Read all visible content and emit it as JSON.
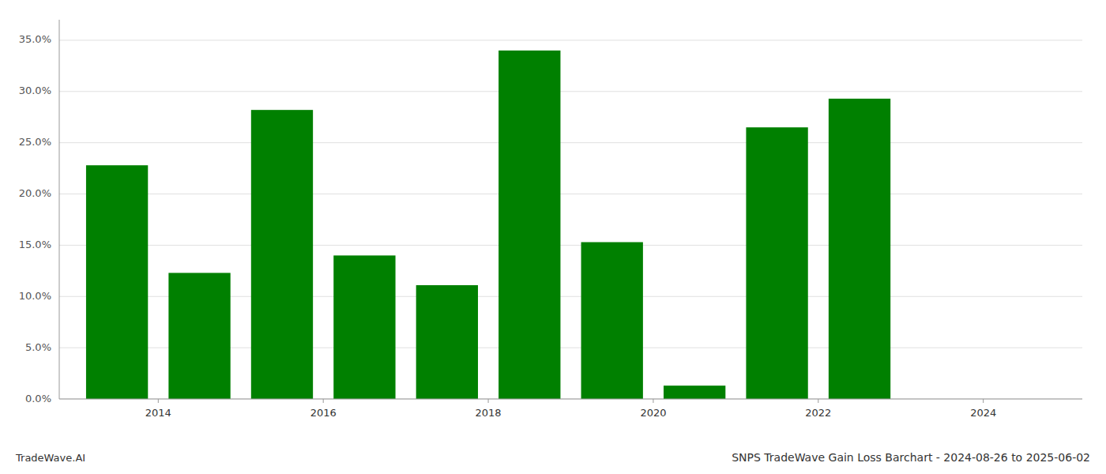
{
  "chart_data": {
    "type": "bar",
    "title": "SNPS TradeWave Gain Loss Barchart - 2024-08-26 to 2025-06-02",
    "annotations": [
      "TradeWave.AI"
    ],
    "x": [
      2013.5,
      2014.5,
      2015.5,
      2016.5,
      2017.5,
      2018.5,
      2019.5,
      2020.5,
      2021.5,
      2022.5,
      2023.5
    ],
    "values": [
      0.228,
      0.123,
      0.282,
      0.14,
      0.111,
      0.34,
      0.153,
      0.013,
      0.265,
      0.293,
      0.0
    ],
    "color": "#008000",
    "xlim": [
      2012.8,
      2025.2
    ],
    "xticks": [
      2014,
      2016,
      2018,
      2020,
      2022,
      2024
    ],
    "ylim": [
      0,
      0.37
    ],
    "yticks": [
      {
        "value": 0.0,
        "label": "0.0%"
      },
      {
        "value": 0.05,
        "label": "5.0%"
      },
      {
        "value": 0.1,
        "label": "10.0%"
      },
      {
        "value": 0.15,
        "label": "15.0%"
      },
      {
        "value": 0.2,
        "label": "20.0%"
      },
      {
        "value": 0.25,
        "label": "25.0%"
      },
      {
        "value": 0.3,
        "label": "30.0%"
      },
      {
        "value": 0.35,
        "label": "35.0%"
      }
    ],
    "grid": true
  }
}
